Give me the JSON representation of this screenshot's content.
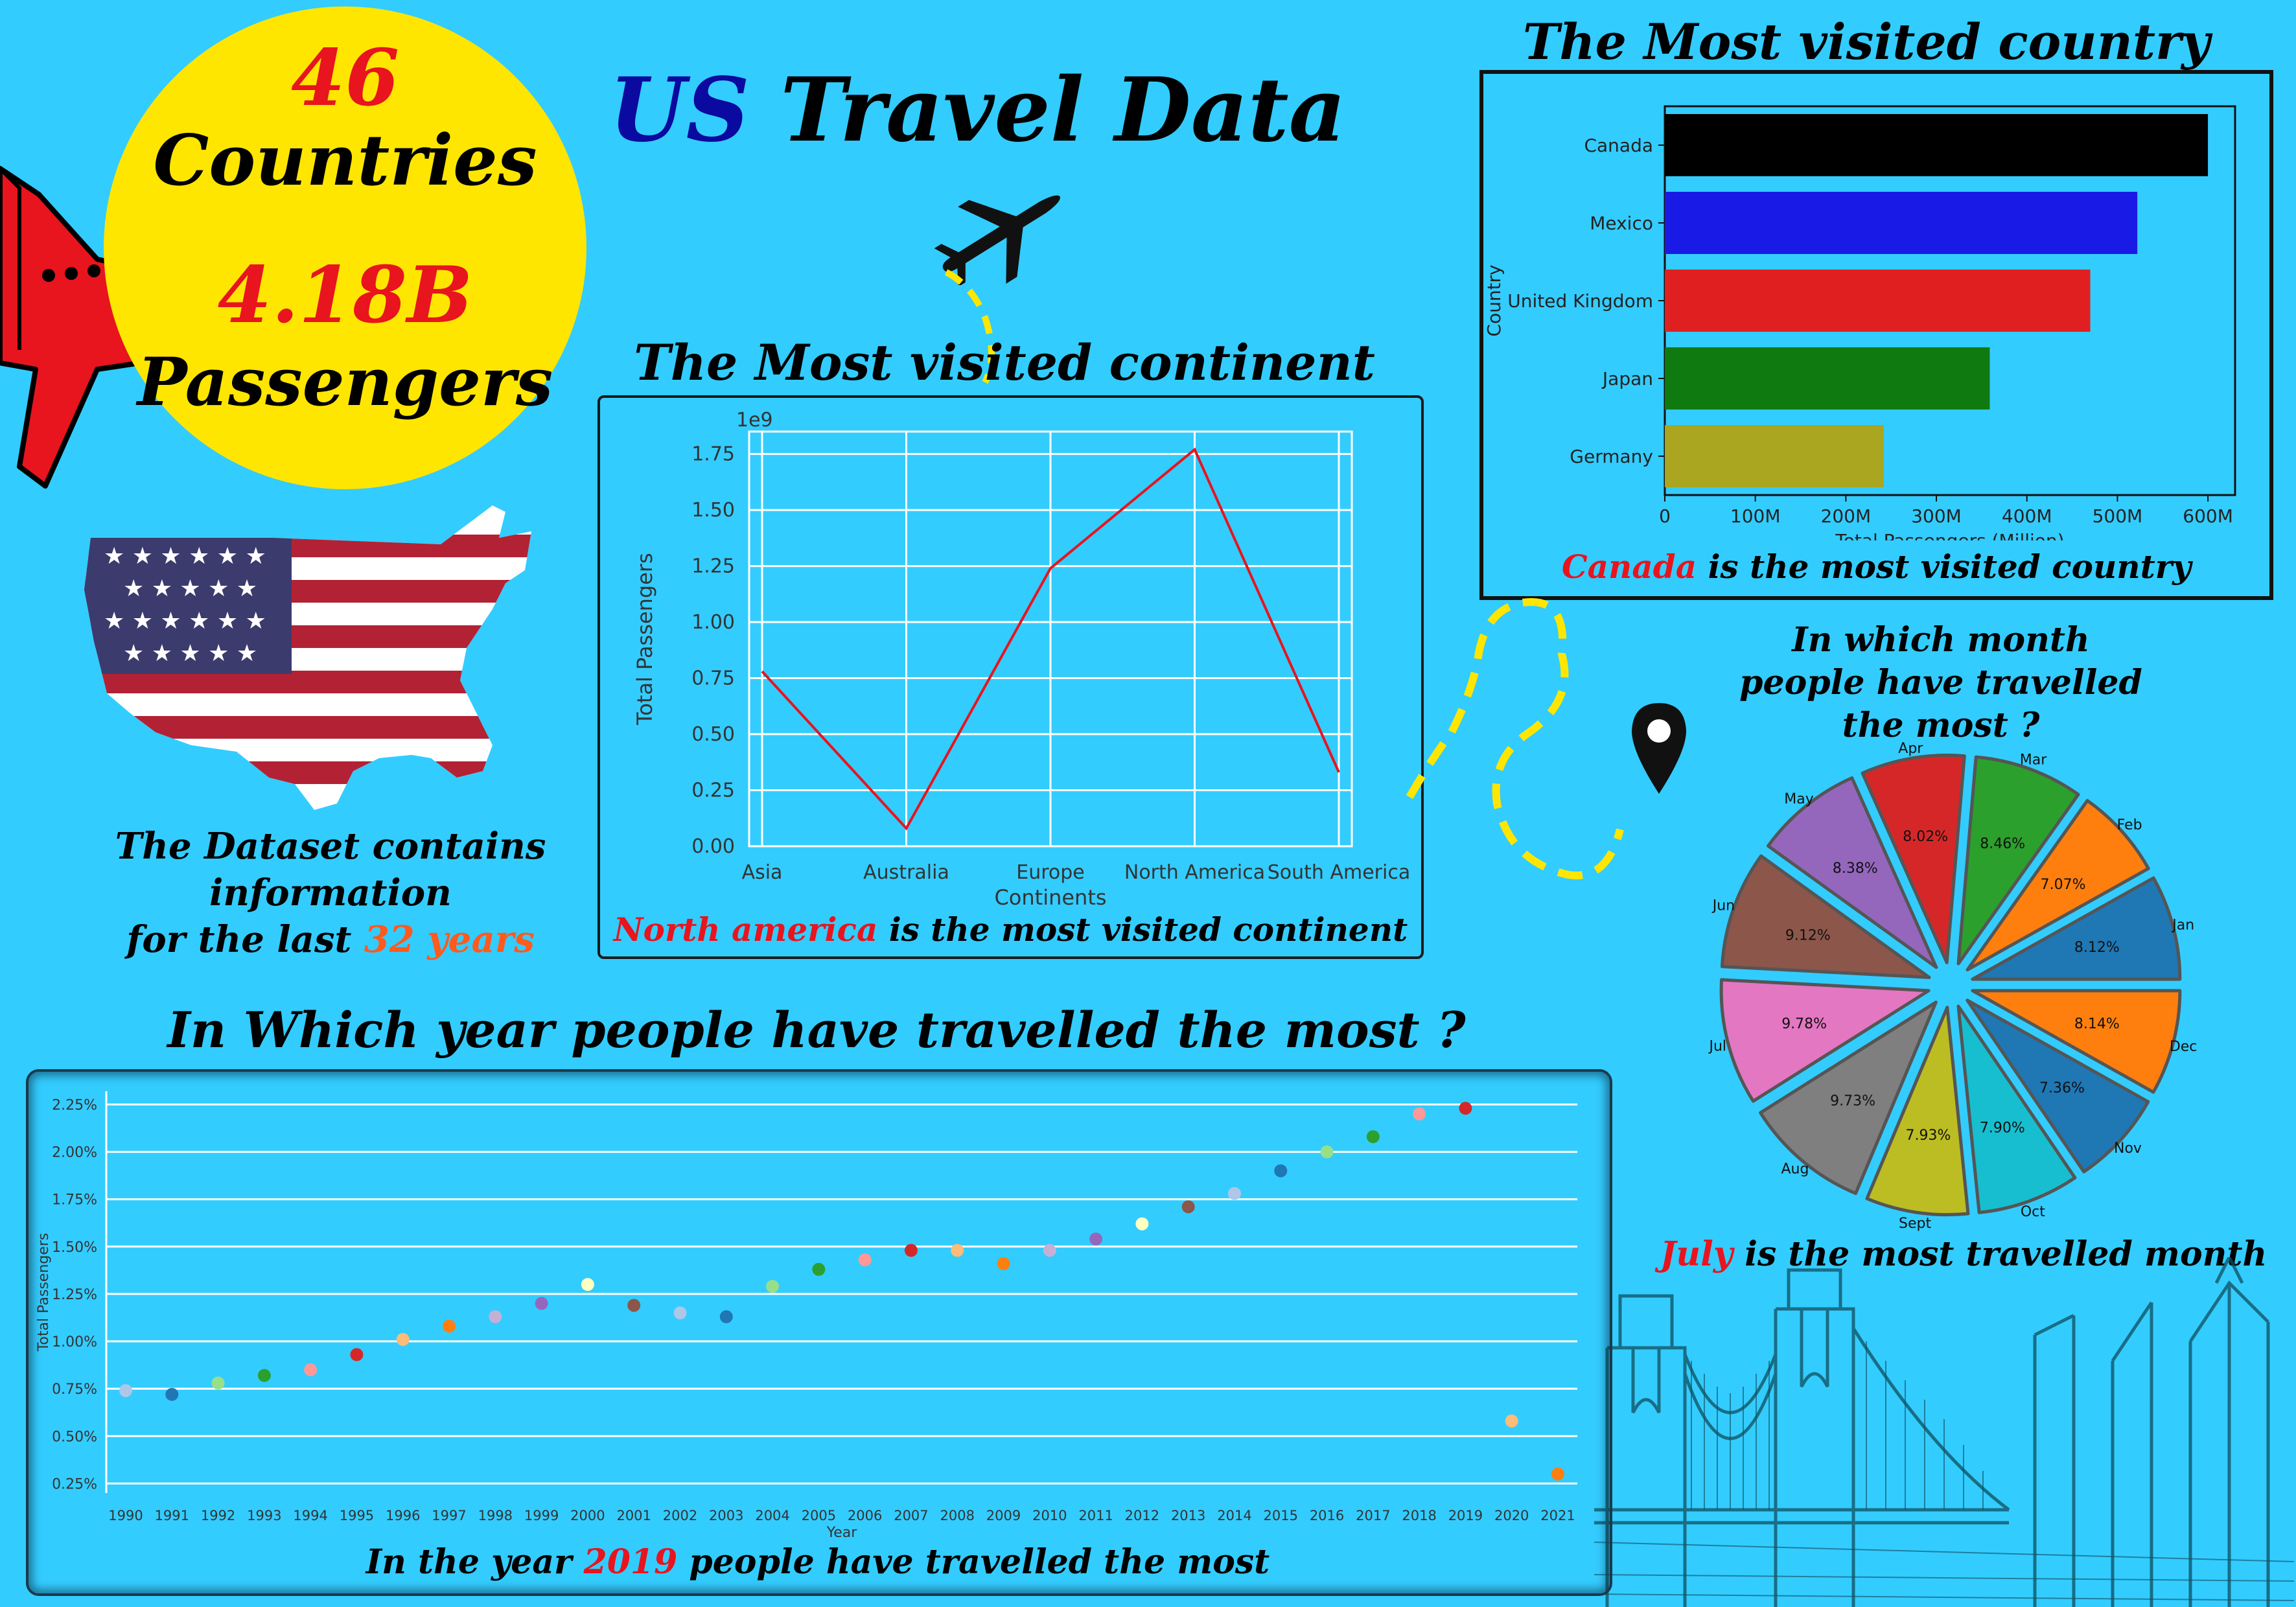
{
  "header": {
    "title_us": "US",
    "title_rest": "Travel Data"
  },
  "badge": {
    "countries_num": "46",
    "countries_label": "Countries",
    "passengers_num": "4.18B",
    "passengers_label": "Passengers"
  },
  "dataset_note": {
    "line1": "The Dataset contains",
    "line2": "information",
    "line3_pre": "for the last ",
    "line3_highlight": "32 years"
  },
  "continent_panel": {
    "heading": "The Most visited continent",
    "caption_highlight": "North america",
    "caption_rest": " is the most visited continent"
  },
  "country_panel": {
    "heading": "The Most visited country",
    "caption_highlight": "Canada",
    "caption_rest": " is the most visited country"
  },
  "month_panel": {
    "heading_line1": "In which month",
    "heading_line2": "people have travelled",
    "heading_line3": "the most ?",
    "caption_highlight": "July",
    "caption_rest": " is the most travelled month"
  },
  "year_panel": {
    "heading": "In Which year people have travelled the most ?",
    "caption_pre": "In the year ",
    "caption_highlight": "2019",
    "caption_rest": " people have travelled the most"
  },
  "colors": {
    "background": "#33ccff",
    "badge": "#ffe600",
    "highlight_red": "#e8141e",
    "highlight_orange": "#ff5a1e",
    "plane": "#e8141e"
  },
  "icons": [
    "airplane-icon",
    "location-pin-icon",
    "us-flag-map-icon",
    "bridge-skyline-icon"
  ],
  "chart_data": [
    {
      "id": "continents",
      "type": "line",
      "categories": [
        "Asia",
        "Australia",
        "Europe",
        "North America",
        "South America"
      ],
      "values": [
        0.78,
        0.08,
        1.24,
        1.77,
        0.33
      ],
      "scale_label": "1e9",
      "xlabel": "Continents",
      "ylabel": "Total Passengers",
      "ylim": [
        0,
        1.85
      ],
      "yticks": [
        "0.00",
        "0.25",
        "0.50",
        "0.75",
        "1.00",
        "1.25",
        "1.50",
        "1.75"
      ],
      "grid": true,
      "line_color": "#e8141e"
    },
    {
      "id": "countries",
      "type": "bar",
      "orientation": "horizontal",
      "categories": [
        "Canada",
        "Mexico",
        "United Kingdom",
        "Japan",
        "Germany"
      ],
      "values": [
        600,
        522,
        470,
        359,
        242
      ],
      "colors": [
        "#000000",
        "#1a1ae6",
        "#e02020",
        "#0f7a0f",
        "#aaa61f"
      ],
      "xlabel": "Total Passengers (Million)",
      "ylabel": "Country",
      "xlim": [
        0,
        630
      ],
      "xticks": [
        "0",
        "100M",
        "200M",
        "300M",
        "400M",
        "500M",
        "600M"
      ]
    },
    {
      "id": "months",
      "type": "pie",
      "slices": [
        {
          "label": "Jan",
          "pct": "8.12%",
          "value": 8.12,
          "color": "#1f77b4"
        },
        {
          "label": "Feb",
          "pct": "7.07%",
          "value": 7.07,
          "color": "#ff7f0e"
        },
        {
          "label": "Mar",
          "pct": "8.46%",
          "value": 8.46,
          "color": "#2ca02c"
        },
        {
          "label": "Apr",
          "pct": "8.02%",
          "value": 8.02,
          "color": "#d62728"
        },
        {
          "label": "May",
          "pct": "8.38%",
          "value": 8.38,
          "color": "#9467bd"
        },
        {
          "label": "Jun",
          "pct": "9.12%",
          "value": 9.12,
          "color": "#8c564b"
        },
        {
          "label": "Jul",
          "pct": "9.78%",
          "value": 9.78,
          "color": "#e377c2"
        },
        {
          "label": "Aug",
          "pct": "9.73%",
          "value": 9.73,
          "color": "#7f7f7f"
        },
        {
          "label": "Sept",
          "pct": "7.93%",
          "value": 7.93,
          "color": "#bcbd22"
        },
        {
          "label": "Oct",
          "pct": "7.90%",
          "value": 7.9,
          "color": "#17becf"
        },
        {
          "label": "Nov",
          "pct": "7.36%",
          "value": 7.36,
          "color": "#1f77b4"
        },
        {
          "label": "Dec",
          "pct": "8.14%",
          "value": 8.14,
          "color": "#ff7f0e"
        }
      ]
    },
    {
      "id": "years",
      "type": "scatter",
      "x": [
        "1990",
        "1991",
        "1992",
        "1993",
        "1994",
        "1995",
        "1996",
        "1997",
        "1998",
        "1999",
        "2000",
        "2001",
        "2002",
        "2003",
        "2004",
        "2005",
        "2006",
        "2007",
        "2008",
        "2009",
        "2010",
        "2011",
        "2012",
        "2013",
        "2014",
        "2015",
        "2016",
        "2017",
        "2018",
        "2019",
        "2020",
        "2021"
      ],
      "values": [
        0.74,
        0.72,
        0.78,
        0.82,
        0.85,
        0.93,
        1.01,
        1.08,
        1.13,
        1.2,
        1.3,
        1.19,
        1.15,
        1.13,
        1.29,
        1.38,
        1.43,
        1.48,
        1.48,
        1.41,
        1.48,
        1.54,
        1.62,
        1.71,
        1.78,
        1.9,
        2.0,
        2.08,
        2.2,
        2.23,
        0.58,
        0.3
      ],
      "colors": [
        "#aec7e8",
        "#1f77b4",
        "#98df8a",
        "#2ca02c",
        "#ff9896",
        "#d62728",
        "#ffbb78",
        "#ff7f0e",
        "#c5b0d5",
        "#9467bd",
        "#ffffbf",
        "#8c564b",
        "#aec7e8",
        "#1f77b4",
        "#98df8a",
        "#2ca02c",
        "#ff9896",
        "#d62728",
        "#ffbb78",
        "#ff7f0e",
        "#c5b0d5",
        "#9467bd",
        "#ffffbf",
        "#8c564b",
        "#aec7e8",
        "#1f77b4",
        "#98df8a",
        "#2ca02c",
        "#ff9896",
        "#d62728",
        "#ffbb78",
        "#ff7f0e"
      ],
      "xlabel": "Year",
      "ylabel": "Total Passengers",
      "ylim": [
        0.2,
        2.32
      ],
      "yticks": [
        "0.25%",
        "0.50%",
        "0.75%",
        "1.00%",
        "1.25%",
        "1.50%",
        "1.75%",
        "2.00%",
        "2.25%"
      ]
    }
  ]
}
